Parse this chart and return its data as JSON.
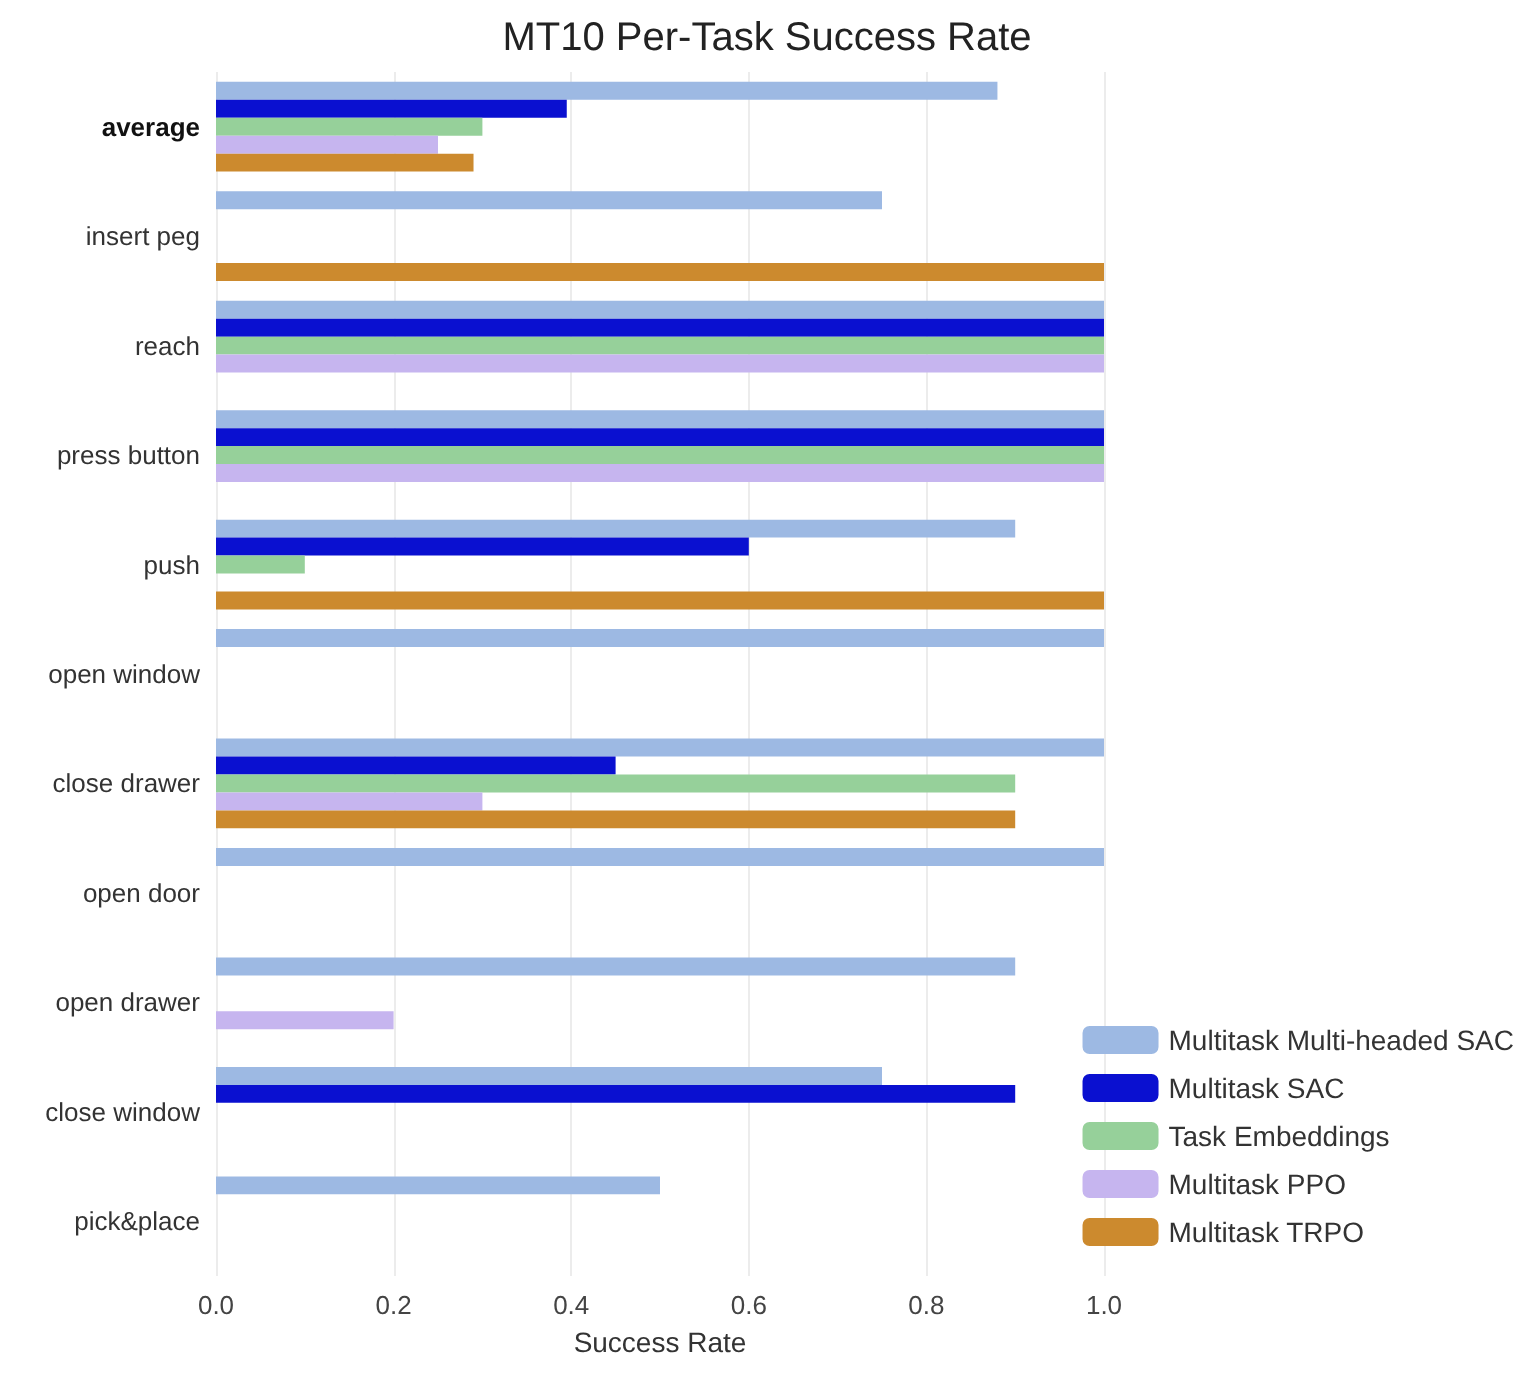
{
  "chart_data": {
    "type": "bar",
    "orientation": "horizontal",
    "title": "MT10 Per-Task Success Rate",
    "xlabel": "Success Rate",
    "categories": [
      "average",
      "insert peg",
      "reach",
      "press button",
      "push",
      "open window",
      "close drawer",
      "open door",
      "open drawer",
      "close window",
      "pick&place"
    ],
    "series": [
      {
        "name": "Multitask Multi-headed SAC",
        "color": "#9db9e3",
        "values": [
          0.88,
          0.75,
          1.0,
          1.0,
          0.9,
          1.0,
          1.0,
          1.0,
          0.9,
          0.75,
          0.5
        ]
      },
      {
        "name": "Multitask SAC",
        "color": "#0a10d0",
        "values": [
          0.395,
          0,
          1.0,
          1.0,
          0.6,
          0,
          0.45,
          0,
          0,
          0.9,
          0
        ]
      },
      {
        "name": "Task Embeddings",
        "color": "#96d09a",
        "values": [
          0.3,
          0,
          1.0,
          1.0,
          0.1,
          0,
          0.9,
          0,
          0,
          0,
          0
        ]
      },
      {
        "name": "Multitask PPO",
        "color": "#c6b5ef",
        "values": [
          0.25,
          0,
          1.0,
          1.0,
          0,
          0,
          0.3,
          0,
          0.2,
          0,
          0
        ]
      },
      {
        "name": "Multitask TRPO",
        "color": "#cc8a2e",
        "values": [
          0.29,
          1.0,
          0,
          0,
          1.0,
          0,
          0.9,
          0,
          0,
          0,
          0
        ]
      }
    ],
    "xlim": [
      0,
      1.0
    ],
    "xticks": [
      {
        "value": 0,
        "label": "0.0"
      },
      0.2,
      0.4,
      0.6,
      0.8,
      {
        "value": 1.0,
        "label": "1.0"
      }
    ],
    "grid": "x",
    "legend": "bottom right"
  }
}
